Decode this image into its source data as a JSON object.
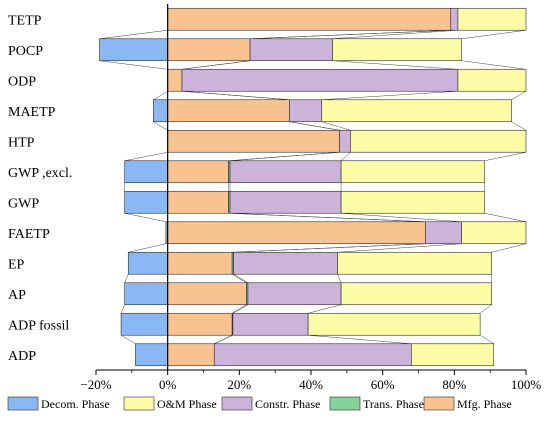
{
  "chart_data": {
    "type": "bar",
    "orientation": "horizontal",
    "stacked": true,
    "categories": [
      "TETP",
      "POCP",
      "ODP",
      "MAETP",
      "HTP",
      "GWP ,excl.",
      "GWP",
      "FAETP",
      "EP",
      "AP",
      "ADP fossil",
      "ADP"
    ],
    "series": [
      {
        "name": "Decom. Phase",
        "color": "#8ab8f5",
        "values": [
          0,
          -19,
          0,
          -4,
          0,
          -12,
          -12,
          -0.5,
          -11,
          -12,
          -13,
          -9
        ]
      },
      {
        "name": "Mfg. Phase",
        "color": "#f9c291",
        "values": [
          79,
          23,
          4,
          34,
          48,
          17,
          17,
          72,
          18,
          22,
          18,
          13
        ]
      },
      {
        "name": "Trans. Phase",
        "color": "#86d39a",
        "values": [
          0,
          0,
          0,
          0,
          0,
          0.4,
          0.4,
          0,
          0.4,
          0.4,
          0.2,
          0
        ]
      },
      {
        "name": "Constr. Phase",
        "color": "#ccb3d9",
        "values": [
          2,
          23,
          77,
          9,
          3,
          31,
          31,
          10,
          29,
          26,
          21,
          55
        ]
      },
      {
        "name": "O&M Phase",
        "color": "#fdfca6",
        "values": [
          19,
          36,
          19,
          53,
          49,
          40,
          40,
          18,
          43,
          42,
          48,
          23
        ]
      }
    ],
    "xlim": [
      -20,
      100
    ],
    "xticks": [
      -20,
      0,
      20,
      40,
      60,
      80,
      100
    ],
    "xtick_labels": [
      "−20%",
      "0%",
      "20%",
      "40%",
      "60%",
      "80%",
      "100%"
    ],
    "legend": {
      "position": "bottom",
      "order": [
        "Decom. Phase",
        "O&M Phase",
        "Constr. Phase",
        "Trans. Phase",
        "Mfg. Phase"
      ]
    },
    "grid": false,
    "connectors": true
  }
}
